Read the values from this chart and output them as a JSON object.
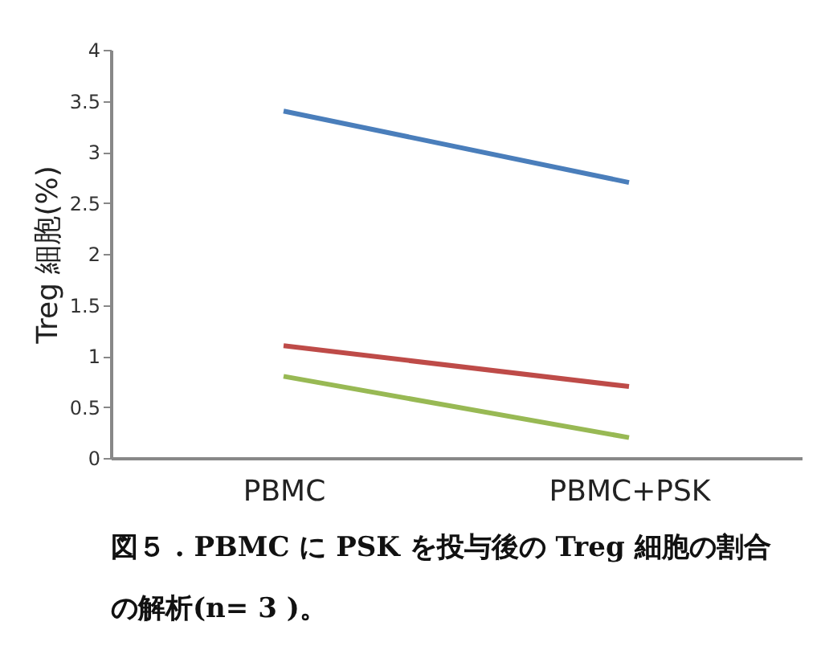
{
  "chart_data": {
    "type": "line",
    "ylabel": "Treg 細胞(%)",
    "categories": [
      "PBMC",
      "PBMC+PSK"
    ],
    "series": [
      {
        "color": "#4a7ebb",
        "values": [
          3.4,
          2.7
        ]
      },
      {
        "color": "#be4b48",
        "values": [
          1.1,
          0.7
        ]
      },
      {
        "color": "#98b954",
        "values": [
          0.8,
          0.2
        ]
      }
    ],
    "ylim": [
      0,
      4
    ],
    "yticks": [
      0,
      0.5,
      1,
      1.5,
      2,
      2.5,
      3,
      3.5,
      4
    ],
    "grid": false,
    "legend": false,
    "annotations": [
      "図５ . PBMC に PSK を投与後の Treg 細胞の割合",
      "の解析(n= 3 )。"
    ]
  }
}
